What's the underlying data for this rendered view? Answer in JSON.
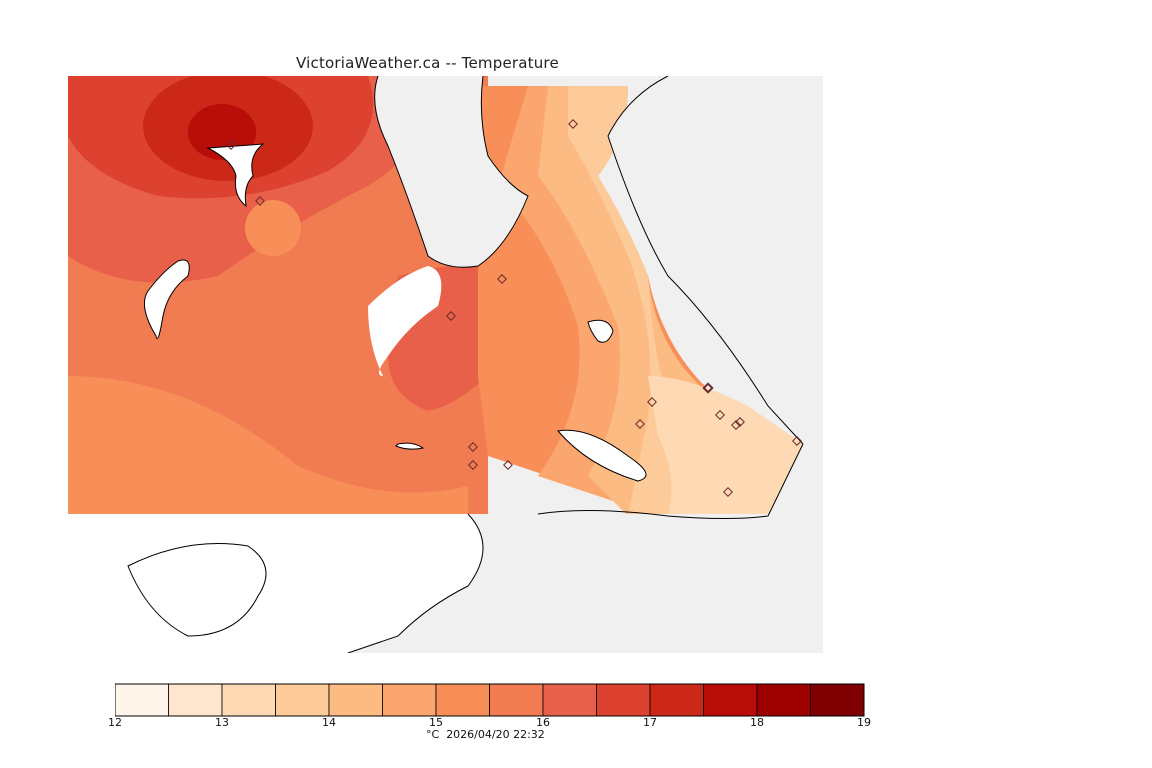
{
  "header": {
    "title": "VictoriaWeather.ca -- Temperature"
  },
  "colorbar": {
    "unit_label": "°C",
    "timestamp": "2026/04/20 22:32",
    "tick_labels": [
      "12",
      "13",
      "14",
      "15",
      "16",
      "17",
      "18",
      "19"
    ],
    "colors": [
      "#fff5eb",
      "#fee6ce",
      "#fdd9b4",
      "#fdcb9a",
      "#fdbb84",
      "#fca66f",
      "#f88f58",
      "#f27c52",
      "#e8604a",
      "#dd4130",
      "#cb2818",
      "#b80d08",
      "#9e0000",
      "#7f0000"
    ]
  },
  "map": {
    "colors": {
      "land_no_data": "#f0f0f0",
      "water": "#ffffff",
      "coastline": "#000000",
      "station_marker": "#6a2a2a"
    },
    "station_count": 18
  }
}
